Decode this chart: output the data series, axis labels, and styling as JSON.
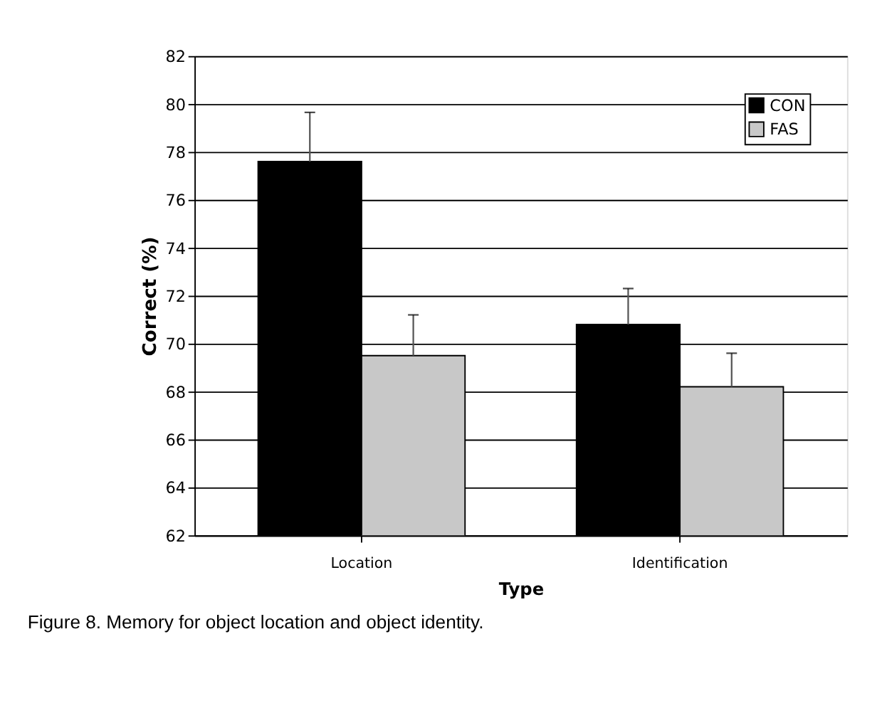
{
  "chart_data": {
    "type": "bar",
    "xlabel": "Type",
    "ylabel": "Correct (%)",
    "categories": [
      "Location",
      "Identification"
    ],
    "series": [
      {
        "name": "CON",
        "color": "#000000",
        "values": [
          77.6,
          70.8
        ],
        "errors": [
          [
            77.6,
            79.65
          ],
          [
            70.8,
            72.3
          ]
        ]
      },
      {
        "name": "FAS",
        "color": "#c8c8c8",
        "values": [
          69.5,
          68.2
        ],
        "errors": [
          [
            69.5,
            71.2
          ],
          [
            68.2,
            69.6
          ]
        ]
      }
    ],
    "ylim": [
      62,
      82
    ],
    "yticks": [
      62,
      64,
      66,
      68,
      70,
      72,
      74,
      76,
      78,
      80,
      82
    ],
    "grid": "y",
    "legend": "top right",
    "annotations": [
      "Figure 8. Memory for object location and object identity."
    ]
  }
}
